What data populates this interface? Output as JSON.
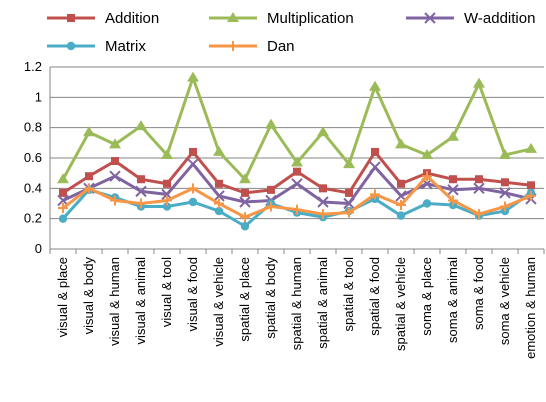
{
  "chart_data": {
    "type": "line",
    "title": "",
    "xlabel": "",
    "ylabel": "",
    "ylim": [
      0,
      1.2
    ],
    "yticks": [
      "0",
      "0.2",
      "0.4",
      "0.6",
      "0.8",
      "1",
      "1.2"
    ],
    "grid": "horizontal",
    "legend_position": "top",
    "categories": [
      "visual & place",
      "visual & body",
      "visual & human",
      "visual & animal",
      "visual & tool",
      "visual & food",
      "visual & vehicle",
      "spatial & place",
      "spatial & body",
      "spatial & human",
      "spatial & animal",
      "spatial & tool",
      "spatial & food",
      "spatial & vehicle",
      "soma & place",
      "soma & animal",
      "soma & food",
      "soma & vehicle",
      "emotion & human"
    ],
    "series": [
      {
        "name": "Addition",
        "color": "#C0504D",
        "marker": "square",
        "values": [
          0.37,
          0.48,
          0.58,
          0.46,
          0.43,
          0.64,
          0.43,
          0.37,
          0.39,
          0.51,
          0.4,
          0.37,
          0.64,
          0.43,
          0.5,
          0.46,
          0.46,
          0.44,
          0.42
        ]
      },
      {
        "name": "Multiplication",
        "color": "#9BBB59",
        "marker": "triangle",
        "values": [
          0.46,
          0.77,
          0.69,
          0.81,
          0.62,
          1.13,
          0.64,
          0.46,
          0.82,
          0.57,
          0.77,
          0.56,
          1.07,
          0.69,
          0.62,
          0.74,
          1.09,
          0.62,
          0.66
        ]
      },
      {
        "name": "W-addition",
        "color": "#8064A2",
        "marker": "x",
        "values": [
          0.32,
          0.4,
          0.48,
          0.38,
          0.36,
          0.56,
          0.35,
          0.31,
          0.32,
          0.43,
          0.31,
          0.3,
          0.54,
          0.35,
          0.43,
          0.39,
          0.4,
          0.37,
          0.33
        ]
      },
      {
        "name": "Matrix",
        "color": "#4BACC6",
        "marker": "circle",
        "values": [
          0.2,
          0.39,
          0.34,
          0.28,
          0.28,
          0.31,
          0.25,
          0.15,
          0.3,
          0.24,
          0.21,
          0.25,
          0.33,
          0.22,
          0.3,
          0.29,
          0.22,
          0.25,
          0.37
        ]
      },
      {
        "name": "Dan",
        "color": "#F79646",
        "marker": "plus",
        "values": [
          0.27,
          0.4,
          0.32,
          0.3,
          0.32,
          0.4,
          0.3,
          0.21,
          0.28,
          0.26,
          0.23,
          0.24,
          0.36,
          0.29,
          0.48,
          0.32,
          0.23,
          0.28,
          0.35
        ]
      }
    ]
  }
}
